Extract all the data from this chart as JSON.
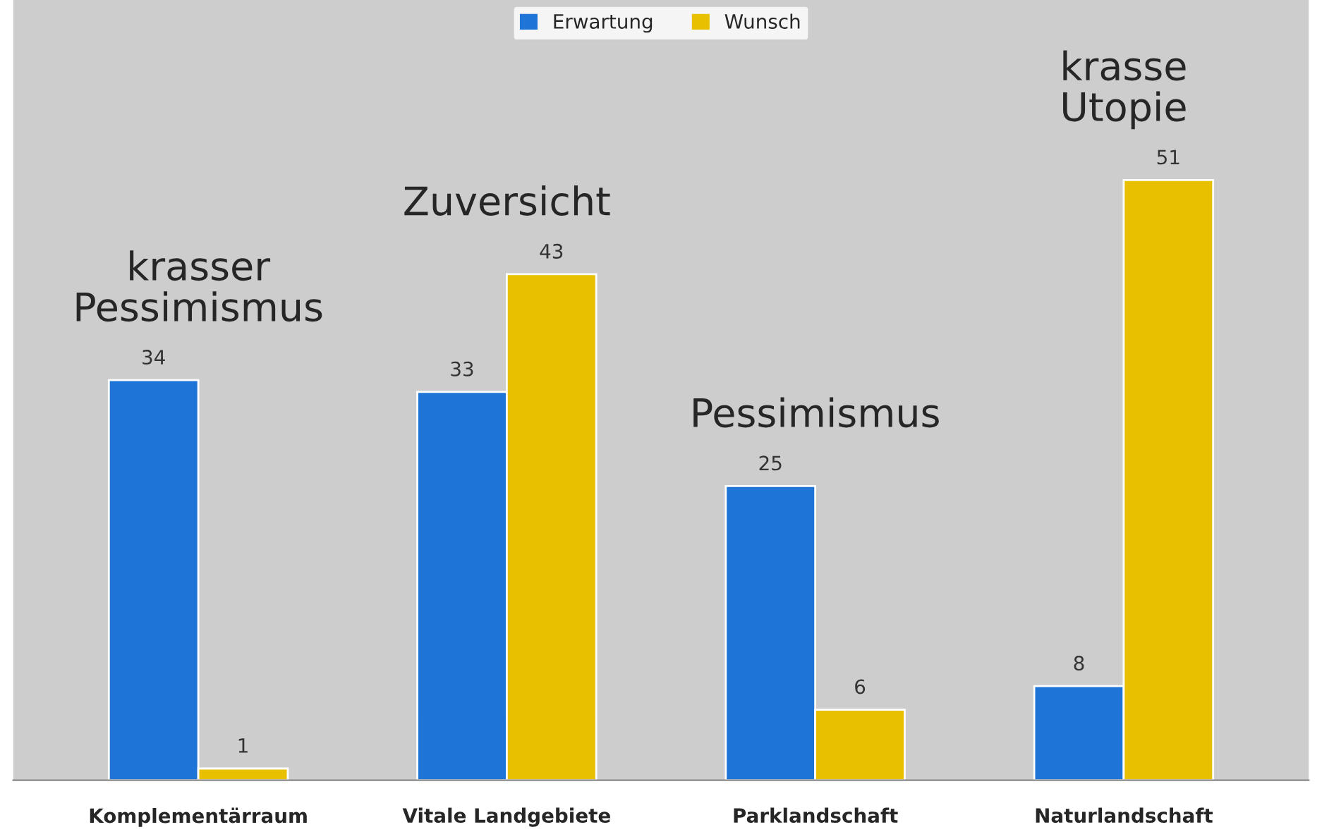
{
  "chart_data": {
    "type": "bar",
    "categories": [
      "Komplementärraum",
      "Vitale Landgebiete",
      "Parklandschaft",
      "Naturlandschaft"
    ],
    "series": [
      {
        "name": "Erwartung",
        "color": "#1f74d8",
        "values": [
          34,
          33,
          25,
          8
        ]
      },
      {
        "name": "Wunsch",
        "color": "#e8c000",
        "values": [
          1,
          43,
          6,
          51
        ]
      }
    ],
    "data_labels": true,
    "legend": "top",
    "annotations": [
      "krasser\nPessimismus",
      "Zuversicht",
      "Pessimismus",
      "krasse\nUtopie"
    ]
  }
}
